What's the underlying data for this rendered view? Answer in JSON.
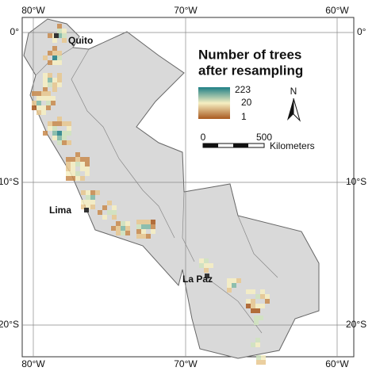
{
  "axes": {
    "top": [
      "80°W",
      "70°W",
      "60°W"
    ],
    "bottom": [
      "80°W",
      "70°W",
      "60°W"
    ],
    "left": [
      "0°",
      "10°S",
      "20°S"
    ],
    "right": [
      "0°",
      "10°S",
      "20°S"
    ]
  },
  "cities": [
    "Quito",
    "Lima",
    "La Paz"
  ],
  "legend": {
    "title_line1": "Number of trees",
    "title_line2": "after resampling",
    "ticks": [
      "223",
      "20",
      "1"
    ]
  },
  "north": "N",
  "scale": {
    "start": "0",
    "end": "500",
    "unit": "Kilometers"
  }
}
